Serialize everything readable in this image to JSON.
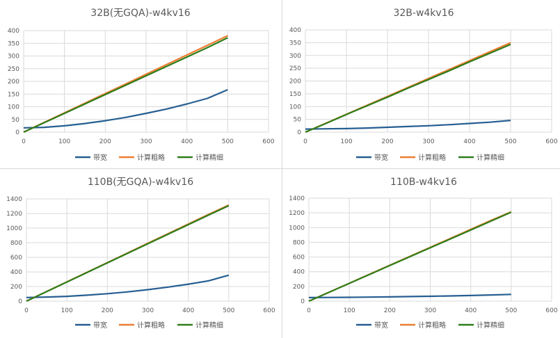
{
  "legend_order": [
    "带宽",
    "计算粗略",
    "计算精细"
  ],
  "colors": {
    "带宽": "#255e91",
    "计算粗略": "#ed7d31",
    "计算精细": "#2e7d1a",
    "grid": "#d9d9d9",
    "text": "#595959"
  },
  "chart_data": [
    {
      "type": "line",
      "title": "32B(无GQA)-w4kv16",
      "xlabel": "",
      "ylabel": "",
      "xlim": [
        0,
        600
      ],
      "ylim": [
        0,
        400
      ],
      "xticks": [
        0,
        100,
        200,
        300,
        400,
        500,
        600
      ],
      "yticks": [
        0,
        50,
        100,
        150,
        200,
        250,
        300,
        350,
        400
      ],
      "grid": true,
      "legend": "bottom",
      "x": [
        0,
        50,
        100,
        150,
        200,
        250,
        300,
        350,
        400,
        450,
        500
      ],
      "series": [
        {
          "name": "带宽",
          "values": [
            17,
            19,
            25,
            34,
            45,
            58,
            74,
            91,
            111,
            133,
            167
          ]
        },
        {
          "name": "计算粗略",
          "values": [
            0,
            38,
            76,
            114,
            152,
            190,
            228,
            266,
            304,
            342,
            380
          ]
        },
        {
          "name": "计算精细",
          "values": [
            0,
            37,
            74,
            111,
            148,
            185,
            222,
            259,
            296,
            333,
            372
          ]
        }
      ]
    },
    {
      "type": "line",
      "title": "32B-w4kv16",
      "xlabel": "",
      "ylabel": "",
      "xlim": [
        0,
        600
      ],
      "ylim": [
        0,
        400
      ],
      "xticks": [
        0,
        100,
        200,
        300,
        400,
        500,
        600
      ],
      "yticks": [
        0,
        50,
        100,
        150,
        200,
        250,
        300,
        350,
        400
      ],
      "grid": true,
      "legend": "bottom",
      "x": [
        0,
        50,
        100,
        150,
        200,
        250,
        300,
        350,
        400,
        450,
        500
      ],
      "series": [
        {
          "name": "带宽",
          "values": [
            12,
            13,
            14,
            16,
            19,
            22,
            25,
            29,
            34,
            39,
            46
          ]
        },
        {
          "name": "计算粗略",
          "values": [
            0,
            35,
            70,
            105,
            140,
            175,
            210,
            245,
            280,
            315,
            350
          ]
        },
        {
          "name": "计算精细",
          "values": [
            0,
            34,
            69,
            103,
            137,
            172,
            206,
            240,
            275,
            309,
            343
          ]
        }
      ]
    },
    {
      "type": "line",
      "title": "110B(无GQA)-w4kv16",
      "xlabel": "",
      "ylabel": "",
      "xlim": [
        0,
        600
      ],
      "ylim": [
        0,
        1400
      ],
      "xticks": [
        0,
        100,
        200,
        300,
        400,
        500,
        600
      ],
      "yticks": [
        0,
        200,
        400,
        600,
        800,
        1000,
        1200,
        1400
      ],
      "grid": true,
      "legend": "bottom",
      "x": [
        0,
        50,
        100,
        150,
        200,
        250,
        300,
        350,
        400,
        450,
        500
      ],
      "series": [
        {
          "name": "带宽",
          "values": [
            50,
            56,
            66,
            82,
            102,
            127,
            157,
            192,
            232,
            278,
            355
          ]
        },
        {
          "name": "计算粗略",
          "values": [
            0,
            132,
            264,
            396,
            528,
            660,
            792,
            924,
            1056,
            1188,
            1315
          ]
        },
        {
          "name": "计算精细",
          "values": [
            0,
            131,
            262,
            393,
            524,
            655,
            786,
            917,
            1048,
            1179,
            1308
          ]
        }
      ]
    },
    {
      "type": "line",
      "title": "110B-w4kv16",
      "xlabel": "",
      "ylabel": "",
      "xlim": [
        0,
        600
      ],
      "ylim": [
        0,
        1400
      ],
      "xticks": [
        0,
        100,
        200,
        300,
        400,
        500,
        600
      ],
      "yticks": [
        0,
        200,
        400,
        600,
        800,
        1000,
        1200,
        1400
      ],
      "grid": true,
      "legend": "bottom",
      "x": [
        0,
        50,
        100,
        150,
        200,
        250,
        300,
        350,
        400,
        450,
        500
      ],
      "series": [
        {
          "name": "带宽",
          "values": [
            48,
            50,
            52,
            55,
            58,
            62,
            66,
            71,
            77,
            84,
            92
          ]
        },
        {
          "name": "计算粗略",
          "values": [
            0,
            122,
            244,
            366,
            488,
            610,
            732,
            854,
            976,
            1098,
            1215
          ]
        },
        {
          "name": "计算精细",
          "values": [
            0,
            121,
            242,
            363,
            484,
            605,
            726,
            847,
            968,
            1089,
            1210
          ]
        }
      ]
    }
  ]
}
